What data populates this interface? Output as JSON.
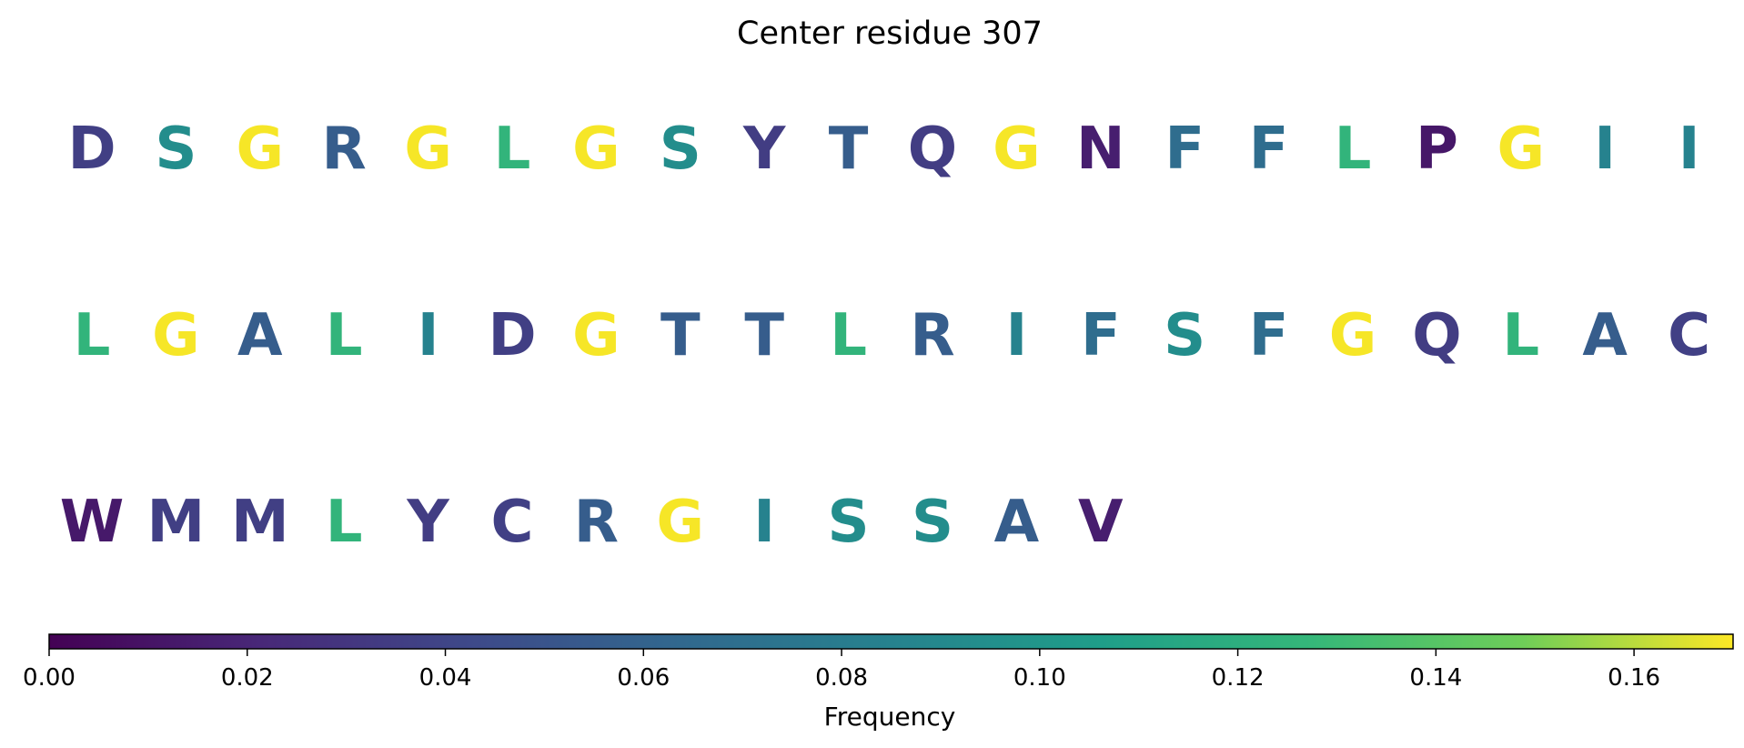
{
  "chart_data": {
    "type": "heatmap",
    "title": "Center residue 307",
    "colorbar": {
      "label": "Frequency",
      "range": [
        0.0,
        0.17
      ],
      "colormap": "viridis",
      "ticks": [
        0.0,
        0.02,
        0.04,
        0.06,
        0.08,
        0.1,
        0.12,
        0.14,
        0.16
      ],
      "tick_labels": [
        "0.00",
        "0.02",
        "0.04",
        "0.06",
        "0.08",
        "0.10",
        "0.12",
        "0.14",
        "0.16"
      ]
    },
    "rows": [
      {
        "residues": [
          {
            "letter": "D",
            "value": 0.036
          },
          {
            "letter": "S",
            "value": 0.093
          },
          {
            "letter": "G",
            "value": 0.169
          },
          {
            "letter": "R",
            "value": 0.056
          },
          {
            "letter": "G",
            "value": 0.169
          },
          {
            "letter": "L",
            "value": 0.125
          },
          {
            "letter": "G",
            "value": 0.169
          },
          {
            "letter": "S",
            "value": 0.093
          },
          {
            "letter": "Y",
            "value": 0.035
          },
          {
            "letter": "T",
            "value": 0.056
          },
          {
            "letter": "Q",
            "value": 0.035
          },
          {
            "letter": "G",
            "value": 0.169
          },
          {
            "letter": "N",
            "value": 0.016
          },
          {
            "letter": "F",
            "value": 0.068
          },
          {
            "letter": "F",
            "value": 0.068
          },
          {
            "letter": "L",
            "value": 0.125
          },
          {
            "letter": "P",
            "value": 0.012
          },
          {
            "letter": "G",
            "value": 0.169
          },
          {
            "letter": "I",
            "value": 0.085
          },
          {
            "letter": "I",
            "value": 0.085
          }
        ]
      },
      {
        "residues": [
          {
            "letter": "L",
            "value": 0.125
          },
          {
            "letter": "G",
            "value": 0.169
          },
          {
            "letter": "A",
            "value": 0.056
          },
          {
            "letter": "L",
            "value": 0.125
          },
          {
            "letter": "I",
            "value": 0.085
          },
          {
            "letter": "D",
            "value": 0.036
          },
          {
            "letter": "G",
            "value": 0.169
          },
          {
            "letter": "T",
            "value": 0.056
          },
          {
            "letter": "T",
            "value": 0.056
          },
          {
            "letter": "L",
            "value": 0.125
          },
          {
            "letter": "R",
            "value": 0.056
          },
          {
            "letter": "I",
            "value": 0.085
          },
          {
            "letter": "F",
            "value": 0.068
          },
          {
            "letter": "S",
            "value": 0.093
          },
          {
            "letter": "F",
            "value": 0.068
          },
          {
            "letter": "G",
            "value": 0.169
          },
          {
            "letter": "Q",
            "value": 0.035
          },
          {
            "letter": "L",
            "value": 0.125
          },
          {
            "letter": "A",
            "value": 0.056
          },
          {
            "letter": "C",
            "value": 0.037
          }
        ]
      },
      {
        "residues": [
          {
            "letter": "W",
            "value": 0.013
          },
          {
            "letter": "M",
            "value": 0.036
          },
          {
            "letter": "M",
            "value": 0.036
          },
          {
            "letter": "L",
            "value": 0.125
          },
          {
            "letter": "Y",
            "value": 0.035
          },
          {
            "letter": "C",
            "value": 0.037
          },
          {
            "letter": "R",
            "value": 0.056
          },
          {
            "letter": "G",
            "value": 0.169
          },
          {
            "letter": "I",
            "value": 0.085
          },
          {
            "letter": "S",
            "value": 0.093
          },
          {
            "letter": "S",
            "value": 0.093
          },
          {
            "letter": "A",
            "value": 0.056
          },
          {
            "letter": "V",
            "value": 0.016
          }
        ]
      }
    ]
  }
}
